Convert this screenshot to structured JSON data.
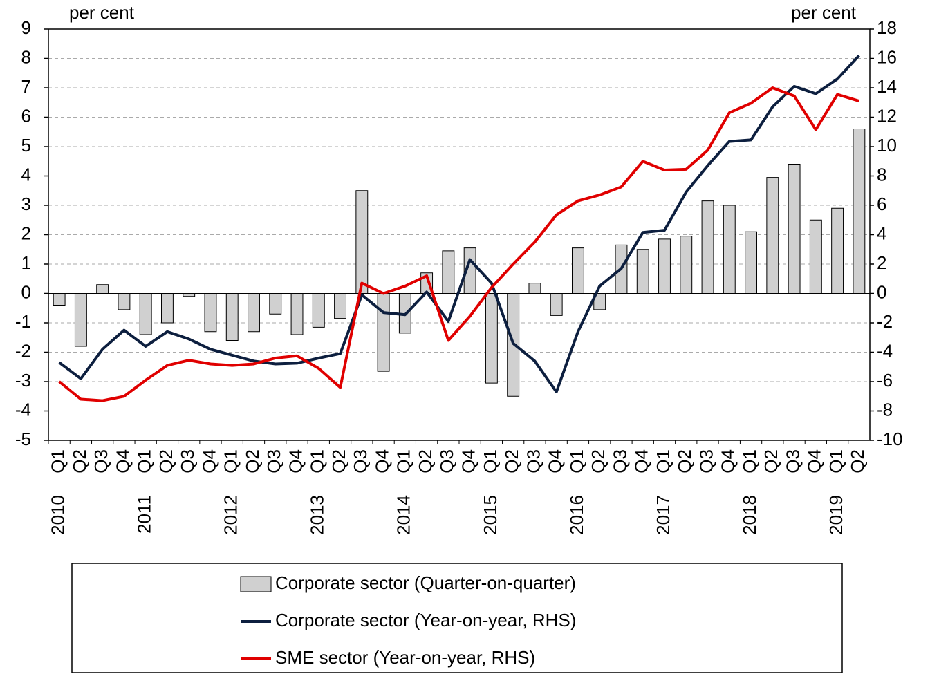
{
  "chart_data": {
    "type": "combo",
    "ylabel": "per cent",
    "y2label": "per cent",
    "categories": [
      "Q1",
      "Q2",
      "Q3",
      "Q4",
      "Q1",
      "Q2",
      "Q3",
      "Q4",
      "Q1",
      "Q2",
      "Q3",
      "Q4",
      "Q1",
      "Q2",
      "Q3",
      "Q4",
      "Q1",
      "Q2",
      "Q3",
      "Q4",
      "Q1",
      "Q2",
      "Q3",
      "Q4",
      "Q1",
      "Q2",
      "Q3",
      "Q4",
      "Q1",
      "Q2",
      "Q3",
      "Q4",
      "Q1",
      "Q2",
      "Q3",
      "Q4",
      "Q1",
      "Q2"
    ],
    "years": [
      "2010",
      null,
      null,
      null,
      "2011",
      null,
      null,
      null,
      "2012",
      null,
      null,
      null,
      "2013",
      null,
      null,
      null,
      "2014",
      null,
      null,
      null,
      "2015",
      null,
      null,
      null,
      "2016",
      null,
      null,
      null,
      "2017",
      null,
      null,
      null,
      "2018",
      null,
      null,
      null,
      "2019",
      null
    ],
    "ylim": [
      -5,
      9
    ],
    "yticks": [
      -5,
      -4,
      -3,
      -2,
      -1,
      0,
      1,
      2,
      3,
      4,
      5,
      6,
      7,
      8,
      9
    ],
    "y2lim": [
      -10,
      18
    ],
    "y2ticks": [
      -10,
      -8,
      -6,
      -4,
      -2,
      0,
      2,
      4,
      6,
      8,
      10,
      12,
      14,
      16,
      18
    ],
    "grid": true,
    "series": [
      {
        "name": "Corporate sector (Quarter-on-quarter)",
        "type": "bar",
        "color": "#d0d0d0",
        "axis": "y",
        "values": [
          -0.4,
          -1.8,
          0.3,
          -0.55,
          -1.4,
          -1.0,
          -0.1,
          -1.3,
          -1.6,
          -1.3,
          -0.7,
          -1.4,
          -1.15,
          -0.85,
          3.5,
          -2.65,
          -1.35,
          0.7,
          1.45,
          1.55,
          -3.05,
          -3.5,
          0.35,
          -0.75,
          1.55,
          -0.55,
          1.65,
          1.5,
          1.85,
          1.95,
          3.15,
          3.0,
          2.1,
          3.95,
          4.4,
          2.5,
          2.9,
          5.6
        ]
      },
      {
        "name": "Corporate sector (Year-on-year, RHS)",
        "type": "line",
        "color": "#0d1f3f",
        "axis": "y2",
        "values": [
          -4.7,
          -5.8,
          -3.8,
          -2.5,
          -3.6,
          -2.6,
          -3.1,
          -3.8,
          -4.2,
          -4.6,
          -4.8,
          -4.75,
          -4.4,
          -4.1,
          -0.1,
          -1.3,
          -1.45,
          0.1,
          -1.9,
          2.3,
          0.7,
          -3.4,
          -4.6,
          -6.7,
          -2.6,
          0.5,
          1.7,
          4.15,
          4.3,
          6.9,
          8.7,
          10.35,
          10.45,
          12.7,
          14.1,
          13.6,
          14.6,
          16.2
        ]
      },
      {
        "name": "SME sector (Year-on-year, RHS)",
        "type": "line",
        "color": "#e00000",
        "axis": "y2",
        "values": [
          -6.0,
          -7.2,
          -7.3,
          -7.0,
          -5.9,
          -4.9,
          -4.55,
          -4.8,
          -4.9,
          -4.8,
          -4.4,
          -4.25,
          -5.1,
          -6.4,
          0.7,
          0.0,
          0.5,
          1.2,
          -3.2,
          -1.55,
          0.4,
          2.0,
          3.5,
          5.35,
          6.3,
          6.7,
          7.25,
          9.0,
          8.4,
          8.45,
          9.75,
          12.3,
          12.95,
          14.0,
          13.45,
          11.15,
          13.55,
          13.1
        ]
      }
    ]
  }
}
